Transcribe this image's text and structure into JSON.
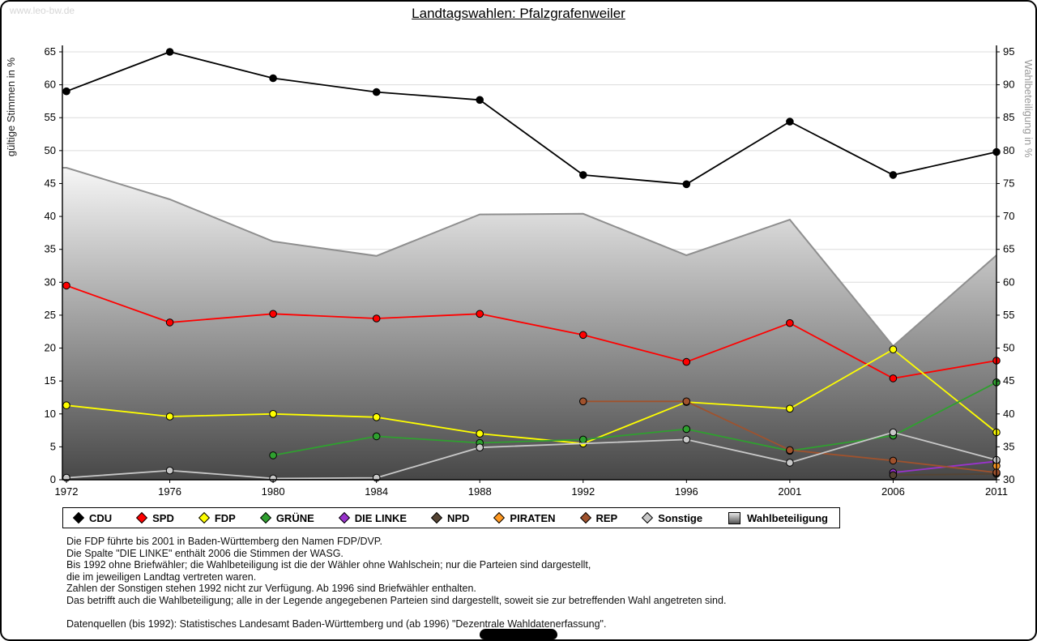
{
  "watermark": "www.leo-bw.de",
  "title": "Landtagswahlen: Pfalzgrafenweiler",
  "chart_data": {
    "type": "line",
    "title": "Landtagswahlen: Pfalzgrafenweiler",
    "categories": [
      1972,
      1976,
      1980,
      1984,
      1988,
      1992,
      1996,
      2001,
      2006,
      2011
    ],
    "left_axis": {
      "label": "gültige Stimmen in %",
      "range": [
        0,
        65
      ],
      "step": 5
    },
    "right_axis": {
      "label": "Wahlbeteiligung in %",
      "range": [
        30,
        95
      ],
      "step": 5
    },
    "grid": true,
    "legend_position": "bottom",
    "series": [
      {
        "name": "CDU",
        "color": "#000000",
        "axis": "left",
        "values": [
          59.0,
          65.0,
          61.0,
          58.9,
          57.7,
          46.3,
          44.9,
          54.4,
          46.3,
          49.8
        ]
      },
      {
        "name": "SPD",
        "color": "#ff0000",
        "axis": "left",
        "values": [
          29.5,
          23.9,
          25.2,
          24.5,
          25.2,
          22.0,
          17.9,
          23.8,
          15.4,
          18.1
        ]
      },
      {
        "name": "FDP",
        "color": "#ffff00",
        "axis": "left",
        "values": [
          11.3,
          9.6,
          10.0,
          9.5,
          7.0,
          5.5,
          11.8,
          10.8,
          19.8,
          7.2
        ]
      },
      {
        "name": "GRÜNE",
        "color": "#2fa02f",
        "axis": "left",
        "values": [
          null,
          null,
          3.7,
          6.6,
          5.6,
          6.1,
          7.7,
          4.4,
          6.7,
          14.8
        ]
      },
      {
        "name": "DIE LINKE",
        "color": "#9933cc",
        "axis": "left",
        "values": [
          null,
          null,
          null,
          null,
          null,
          null,
          null,
          null,
          1.1,
          2.8
        ]
      },
      {
        "name": "NPD",
        "color": "#554433",
        "axis": "left",
        "values": [
          null,
          null,
          null,
          null,
          null,
          null,
          null,
          null,
          0.7,
          0.9
        ]
      },
      {
        "name": "PIRATEN",
        "color": "#ff9922",
        "axis": "left",
        "values": [
          null,
          null,
          null,
          null,
          null,
          null,
          null,
          null,
          null,
          2.1
        ]
      },
      {
        "name": "REP",
        "color": "#a0522d",
        "axis": "left",
        "values": [
          null,
          null,
          null,
          null,
          null,
          11.9,
          11.9,
          4.5,
          2.9,
          1.1
        ]
      },
      {
        "name": "Sonstige",
        "color": "#c8c8c8",
        "axis": "left",
        "values": [
          0.3,
          1.4,
          0.2,
          0.3,
          4.9,
          null,
          6.1,
          2.6,
          7.2,
          3.0
        ]
      },
      {
        "name": "Wahlbeteiligung",
        "color": "#aaaaaa",
        "axis": "right",
        "type": "area",
        "values": [
          77.4,
          72.6,
          66.2,
          64.0,
          70.3,
          70.4,
          64.1,
          69.5,
          50.3,
          64.1
        ]
      }
    ]
  },
  "footnotes": [
    "Die FDP führte bis 2001 in Baden-Württemberg den Namen FDP/DVP.",
    "Die Spalte \"DIE LINKE\" enthält 2006 die Stimmen der WASG.",
    "Bis 1992 ohne Briefwähler; die Wahlbeteiligung ist die der Wähler ohne Wahlschein; nur die Parteien sind dargestellt,",
    "die im jeweiligen Landtag vertreten waren.",
    "Zahlen der Sonstigen stehen 1992 nicht zur Verfügung. Ab 1996 sind Briefwähler enthalten.",
    "Das betrifft auch die Wahlbeteiligung; alle in der Legende angegebenen Parteien sind dargestellt, soweit sie zur betreffenden Wahl angetreten sind.",
    "",
    "Datenquellen (bis 1992): Statistisches Landesamt Baden-Württemberg und (ab 1996) \"Dezentrale Wahldatenerfassung\"."
  ]
}
